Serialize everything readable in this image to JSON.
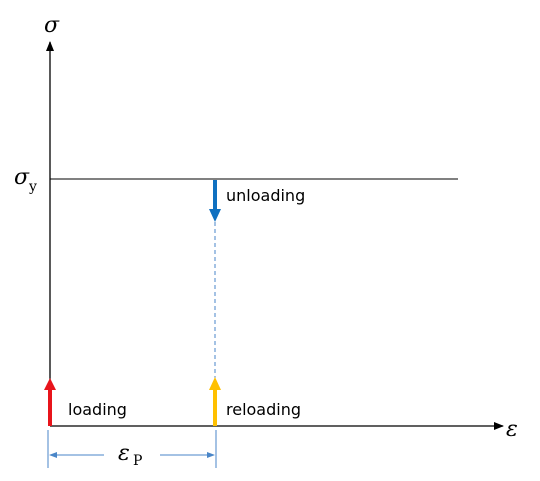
{
  "axes": {
    "y_label": "σ",
    "x_label": "ε"
  },
  "yield_stress": {
    "symbol": "σ",
    "subscript": "y"
  },
  "plastic_strain": {
    "symbol": "ε",
    "subscript": "P"
  },
  "arrows": {
    "loading": "loading",
    "unloading": "unloading",
    "reloading": "reloading"
  }
}
